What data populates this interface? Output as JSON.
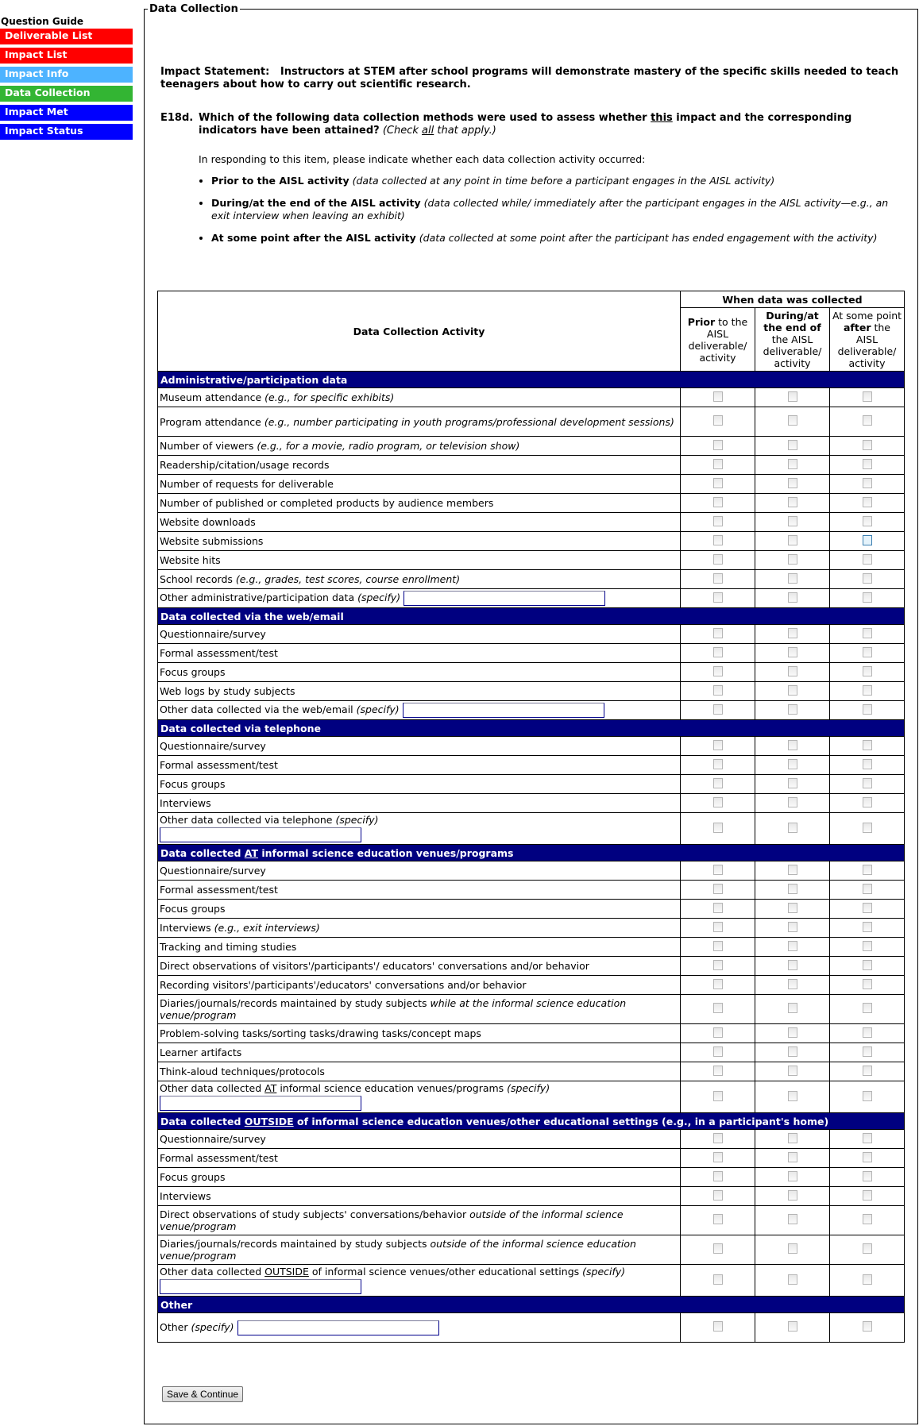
{
  "nav": {
    "heading": "Question Guide",
    "items": [
      {
        "label": "Deliverable List",
        "color": "#ff0000"
      },
      {
        "label": "Impact List",
        "color": "#ff0000"
      },
      {
        "label": "Impact Info",
        "color": "#4db3ff"
      },
      {
        "label": "Data Collection",
        "color": "#33b533"
      },
      {
        "label": "Impact Met",
        "color": "#0000ff"
      },
      {
        "label": "Impact Status",
        "color": "#0000ff"
      }
    ]
  },
  "form": {
    "legend": "Data Collection",
    "impact_label": "Impact Statement:",
    "impact_text": "Instructors at STEM after school programs will demonstrate mastery of the specific skills needed to teach teenagers about how to carry out scientific research.",
    "question_number": "E18d.",
    "question_a": "Which of the following data collection methods were used to assess whether ",
    "question_u": "this",
    "question_b": " impact and the corresponding indicators have been attained?",
    "question_i1": "(Check ",
    "question_iu": "all",
    "question_i2": " that apply.)",
    "instructions": "In responding to this item, please indicate whether each data collection activity occurred:",
    "bullets": [
      {
        "bold": "Prior to the AISL activity",
        "italic": "(data collected at any point in time before a participant engages in the AISL activity)"
      },
      {
        "bold": "During/at the end of the AISL activity",
        "italic": "(data collected while/ immediately after the participant engages in the AISL activity—e.g., an exit interview when leaving an exhibit)"
      },
      {
        "bold": "At some point after the AISL activity",
        "italic": "(data collected at some point after the participant has ended engagement with the activity)"
      }
    ],
    "save_label": "Save & Continue"
  },
  "table": {
    "activity_header": "Data Collection Activity",
    "when_header": "When data was collected",
    "col1": {
      "b": "Prior",
      "t": " to the AISL deliverable/ activity"
    },
    "col2": {
      "b": "During/at the end of",
      "t": " the AISL deliverable/ activity"
    },
    "col3": {
      "t1": "At some point ",
      "b": "after",
      "t2": " the AISL deliverable/ activity"
    },
    "sections": [
      {
        "title": [
          [
            "Administrative/participation data",
            ""
          ]
        ],
        "rows": [
          {
            "parts": [
              [
                "Museum attendance ",
                ""
              ],
              [
                "(e.g., for specific exhibits)",
                "i"
              ]
            ]
          },
          {
            "parts": [
              [
                "Program attendance ",
                ""
              ],
              [
                "(e.g., number participating in youth programs/professional development sessions)",
                "i"
              ]
            ],
            "tall": true
          },
          {
            "parts": [
              [
                "Number of viewers ",
                ""
              ],
              [
                "(e.g., for a movie, radio program, or television show)",
                "i"
              ]
            ]
          },
          {
            "parts": [
              [
                "Readership/citation/usage records",
                ""
              ]
            ]
          },
          {
            "parts": [
              [
                "Number of requests for deliverable",
                ""
              ]
            ]
          },
          {
            "parts": [
              [
                "Number of published or completed products by audience members",
                ""
              ]
            ]
          },
          {
            "parts": [
              [
                "Website downloads",
                ""
              ]
            ]
          },
          {
            "parts": [
              [
                "Website submissions",
                ""
              ]
            ],
            "focus": 2
          },
          {
            "parts": [
              [
                "Website hits",
                ""
              ]
            ]
          },
          {
            "parts": [
              [
                "School records ",
                ""
              ],
              [
                "(e.g., grades, test scores, course enrollment)",
                "i"
              ]
            ]
          },
          {
            "parts": [
              [
                "Other administrative/participation data ",
                ""
              ],
              [
                "(specify)",
                "i"
              ]
            ],
            "specify": "inline"
          }
        ]
      },
      {
        "title": [
          [
            "Data collected via the web/email",
            ""
          ]
        ],
        "rows": [
          {
            "parts": [
              [
                "Questionnaire/survey",
                ""
              ]
            ]
          },
          {
            "parts": [
              [
                "Formal assessment/test",
                ""
              ]
            ]
          },
          {
            "parts": [
              [
                "Focus groups",
                ""
              ]
            ]
          },
          {
            "parts": [
              [
                "Web logs by study subjects",
                ""
              ]
            ]
          },
          {
            "parts": [
              [
                "Other data collected via the web/email ",
                ""
              ],
              [
                "(specify)",
                "i"
              ]
            ],
            "specify": "inline"
          }
        ]
      },
      {
        "title": [
          [
            "Data collected via telephone",
            ""
          ]
        ],
        "rows": [
          {
            "parts": [
              [
                "Questionnaire/survey",
                ""
              ]
            ]
          },
          {
            "parts": [
              [
                "Formal assessment/test",
                ""
              ]
            ]
          },
          {
            "parts": [
              [
                "Focus groups",
                ""
              ]
            ]
          },
          {
            "parts": [
              [
                "Interviews",
                ""
              ]
            ]
          },
          {
            "parts": [
              [
                "Other data collected via telephone ",
                ""
              ],
              [
                "(specify)",
                "i"
              ]
            ],
            "specify": "below"
          }
        ]
      },
      {
        "title": [
          [
            "Data collected ",
            ""
          ],
          [
            "AT",
            "u"
          ],
          [
            " informal science education venues/programs",
            ""
          ]
        ],
        "rows": [
          {
            "parts": [
              [
                "Questionnaire/survey",
                ""
              ]
            ]
          },
          {
            "parts": [
              [
                "Formal assessment/test",
                ""
              ]
            ]
          },
          {
            "parts": [
              [
                "Focus groups",
                ""
              ]
            ]
          },
          {
            "parts": [
              [
                "Interviews ",
                ""
              ],
              [
                "(e.g., exit interviews)",
                "i"
              ]
            ]
          },
          {
            "parts": [
              [
                "Tracking and timing studies",
                ""
              ]
            ]
          },
          {
            "parts": [
              [
                "Direct observations of visitors'/participants'/ educators' conversations and/or behavior",
                ""
              ]
            ]
          },
          {
            "parts": [
              [
                "Recording visitors'/participants'/educators' conversations and/or behavior",
                ""
              ]
            ]
          },
          {
            "parts": [
              [
                "Diaries/journals/records maintained by study subjects ",
                ""
              ],
              [
                "while at the informal science education venue/program",
                "i"
              ]
            ],
            "tall": true
          },
          {
            "parts": [
              [
                "Problem-solving tasks/sorting tasks/drawing tasks/concept maps",
                ""
              ]
            ]
          },
          {
            "parts": [
              [
                "Learner artifacts",
                ""
              ]
            ]
          },
          {
            "parts": [
              [
                "Think-aloud techniques/protocols",
                ""
              ]
            ]
          },
          {
            "parts": [
              [
                "Other data collected ",
                ""
              ],
              [
                "AT",
                "u"
              ],
              [
                " informal science education venues/programs ",
                ""
              ],
              [
                "(specify)",
                "i"
              ]
            ],
            "specify": "below"
          }
        ]
      },
      {
        "title": [
          [
            "Data collected ",
            ""
          ],
          [
            "OUTSIDE",
            "u"
          ],
          [
            " of informal science education venues/other educational settings (e.g., in a participant's home)",
            ""
          ]
        ],
        "rows": [
          {
            "parts": [
              [
                "Questionnaire/survey",
                ""
              ]
            ]
          },
          {
            "parts": [
              [
                "Formal assessment/test",
                ""
              ]
            ]
          },
          {
            "parts": [
              [
                "Focus groups",
                ""
              ]
            ]
          },
          {
            "parts": [
              [
                "Interviews",
                ""
              ]
            ]
          },
          {
            "parts": [
              [
                "Direct observations of study subjects' conversations/behavior ",
                ""
              ],
              [
                "outside of the informal science venue/program",
                "i"
              ]
            ],
            "tall": true
          },
          {
            "parts": [
              [
                "Diaries/journals/records maintained by study subjects ",
                ""
              ],
              [
                "outside of the informal science education venue/program",
                "i"
              ]
            ],
            "tall": true
          },
          {
            "parts": [
              [
                "Other data collected ",
                ""
              ],
              [
                "OUTSIDE",
                "u"
              ],
              [
                " of informal science venues/other educational settings ",
                ""
              ],
              [
                "(specify)",
                "i"
              ]
            ],
            "specify": "below"
          }
        ]
      },
      {
        "title": [
          [
            "Other",
            ""
          ]
        ],
        "rows": [
          {
            "parts": [
              [
                "Other ",
                ""
              ],
              [
                "(specify)",
                "i"
              ]
            ],
            "specify": "inline",
            "tall": true
          }
        ]
      }
    ]
  }
}
